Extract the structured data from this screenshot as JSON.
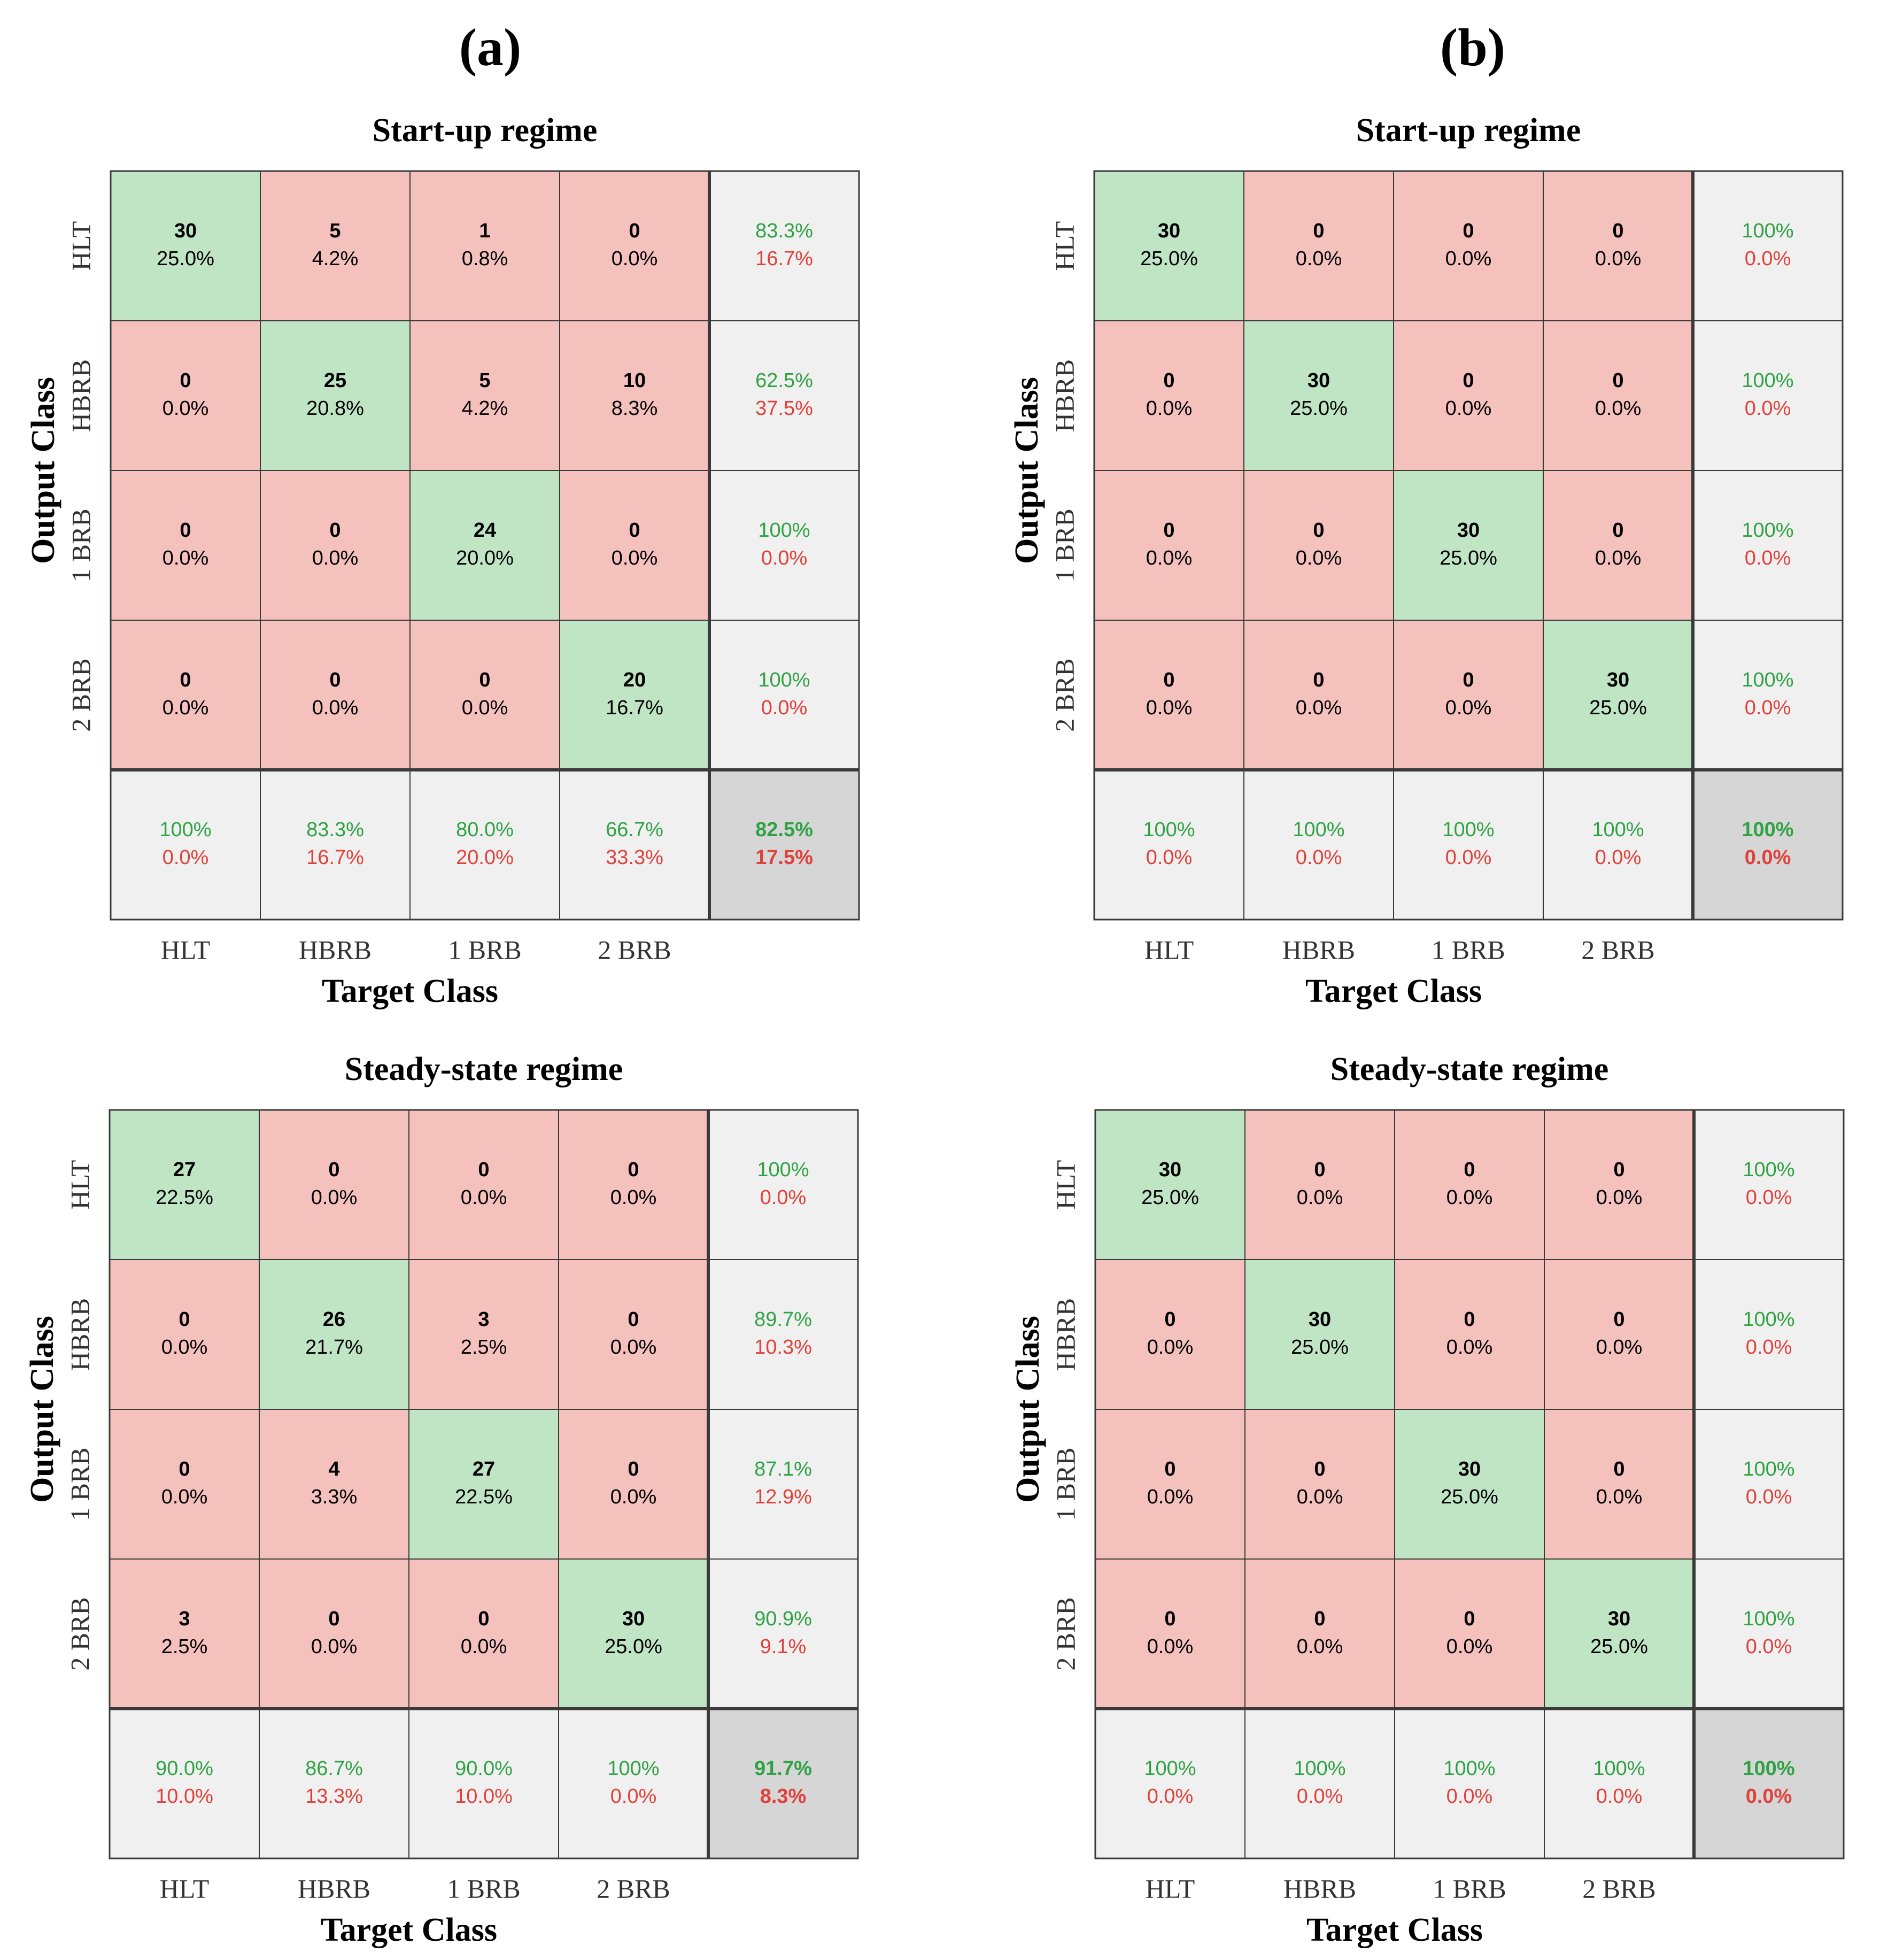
{
  "column_labels": [
    "(a)",
    "(b)"
  ],
  "colors": {
    "correct_fill": "#bfe5c5",
    "error_fill": "#f5c1bd",
    "summary_fill": "#f0f0f0",
    "overall_fill": "#d6d6d6",
    "good_text": "#2fa243",
    "bad_text": "#e0413a",
    "grid_line": "#3a3a3a",
    "text": "#000000"
  },
  "chart_data": [
    {
      "type": "heatmap",
      "panel": "a",
      "title": "Start-up regime",
      "xlabel": "Target Class",
      "ylabel": "Output Class",
      "classes": [
        "HLT",
        "HBRB",
        "1 BRB",
        "2 BRB"
      ],
      "counts": [
        [
          30,
          5,
          1,
          0
        ],
        [
          0,
          25,
          5,
          10
        ],
        [
          0,
          0,
          24,
          0
        ],
        [
          0,
          0,
          0,
          20
        ]
      ],
      "percents": [
        [
          "25.0%",
          "4.2%",
          "0.8%",
          "0.0%"
        ],
        [
          "0.0%",
          "20.8%",
          "4.2%",
          "8.3%"
        ],
        [
          "0.0%",
          "0.0%",
          "20.0%",
          "0.0%"
        ],
        [
          "0.0%",
          "0.0%",
          "0.0%",
          "16.7%"
        ]
      ],
      "row_summary": [
        [
          "83.3%",
          "16.7%"
        ],
        [
          "62.5%",
          "37.5%"
        ],
        [
          "100%",
          "0.0%"
        ],
        [
          "100%",
          "0.0%"
        ]
      ],
      "col_summary": [
        [
          "100%",
          "0.0%"
        ],
        [
          "83.3%",
          "16.7%"
        ],
        [
          "80.0%",
          "20.0%"
        ],
        [
          "66.7%",
          "33.3%"
        ]
      ],
      "overall": [
        "82.5%",
        "17.5%"
      ]
    },
    {
      "type": "heatmap",
      "panel": "b",
      "title": "Start-up regime",
      "xlabel": "Target Class",
      "ylabel": "Output Class",
      "classes": [
        "HLT",
        "HBRB",
        "1 BRB",
        "2 BRB"
      ],
      "counts": [
        [
          30,
          0,
          0,
          0
        ],
        [
          0,
          30,
          0,
          0
        ],
        [
          0,
          0,
          30,
          0
        ],
        [
          0,
          0,
          0,
          30
        ]
      ],
      "percents": [
        [
          "25.0%",
          "0.0%",
          "0.0%",
          "0.0%"
        ],
        [
          "0.0%",
          "25.0%",
          "0.0%",
          "0.0%"
        ],
        [
          "0.0%",
          "0.0%",
          "25.0%",
          "0.0%"
        ],
        [
          "0.0%",
          "0.0%",
          "0.0%",
          "25.0%"
        ]
      ],
      "row_summary": [
        [
          "100%",
          "0.0%"
        ],
        [
          "100%",
          "0.0%"
        ],
        [
          "100%",
          "0.0%"
        ],
        [
          "100%",
          "0.0%"
        ]
      ],
      "col_summary": [
        [
          "100%",
          "0.0%"
        ],
        [
          "100%",
          "0.0%"
        ],
        [
          "100%",
          "0.0%"
        ],
        [
          "100%",
          "0.0%"
        ]
      ],
      "overall": [
        "100%",
        "0.0%"
      ]
    },
    {
      "type": "heatmap",
      "panel": "a",
      "title": "Steady-state regime",
      "xlabel": "Target Class",
      "ylabel": "Output Class",
      "classes": [
        "HLT",
        "HBRB",
        "1 BRB",
        "2 BRB"
      ],
      "counts": [
        [
          27,
          0,
          0,
          0
        ],
        [
          0,
          26,
          3,
          0
        ],
        [
          0,
          4,
          27,
          0
        ],
        [
          3,
          0,
          0,
          30
        ]
      ],
      "percents": [
        [
          "22.5%",
          "0.0%",
          "0.0%",
          "0.0%"
        ],
        [
          "0.0%",
          "21.7%",
          "2.5%",
          "0.0%"
        ],
        [
          "0.0%",
          "3.3%",
          "22.5%",
          "0.0%"
        ],
        [
          "2.5%",
          "0.0%",
          "0.0%",
          "25.0%"
        ]
      ],
      "row_summary": [
        [
          "100%",
          "0.0%"
        ],
        [
          "89.7%",
          "10.3%"
        ],
        [
          "87.1%",
          "12.9%"
        ],
        [
          "90.9%",
          "9.1%"
        ]
      ],
      "col_summary": [
        [
          "90.0%",
          "10.0%"
        ],
        [
          "86.7%",
          "13.3%"
        ],
        [
          "90.0%",
          "10.0%"
        ],
        [
          "100%",
          "0.0%"
        ]
      ],
      "overall": [
        "91.7%",
        "8.3%"
      ]
    },
    {
      "type": "heatmap",
      "panel": "b",
      "title": "Steady-state regime",
      "xlabel": "Target Class",
      "ylabel": "Output Class",
      "classes": [
        "HLT",
        "HBRB",
        "1 BRB",
        "2 BRB"
      ],
      "counts": [
        [
          30,
          0,
          0,
          0
        ],
        [
          0,
          30,
          0,
          0
        ],
        [
          0,
          0,
          30,
          0
        ],
        [
          0,
          0,
          0,
          30
        ]
      ],
      "percents": [
        [
          "25.0%",
          "0.0%",
          "0.0%",
          "0.0%"
        ],
        [
          "0.0%",
          "25.0%",
          "0.0%",
          "0.0%"
        ],
        [
          "0.0%",
          "0.0%",
          "25.0%",
          "0.0%"
        ],
        [
          "0.0%",
          "0.0%",
          "0.0%",
          "25.0%"
        ]
      ],
      "row_summary": [
        [
          "100%",
          "0.0%"
        ],
        [
          "100%",
          "0.0%"
        ],
        [
          "100%",
          "0.0%"
        ],
        [
          "100%",
          "0.0%"
        ]
      ],
      "col_summary": [
        [
          "100%",
          "0.0%"
        ],
        [
          "100%",
          "0.0%"
        ],
        [
          "100%",
          "0.0%"
        ],
        [
          "100%",
          "0.0%"
        ]
      ],
      "overall": [
        "100%",
        "0.0%"
      ]
    }
  ]
}
